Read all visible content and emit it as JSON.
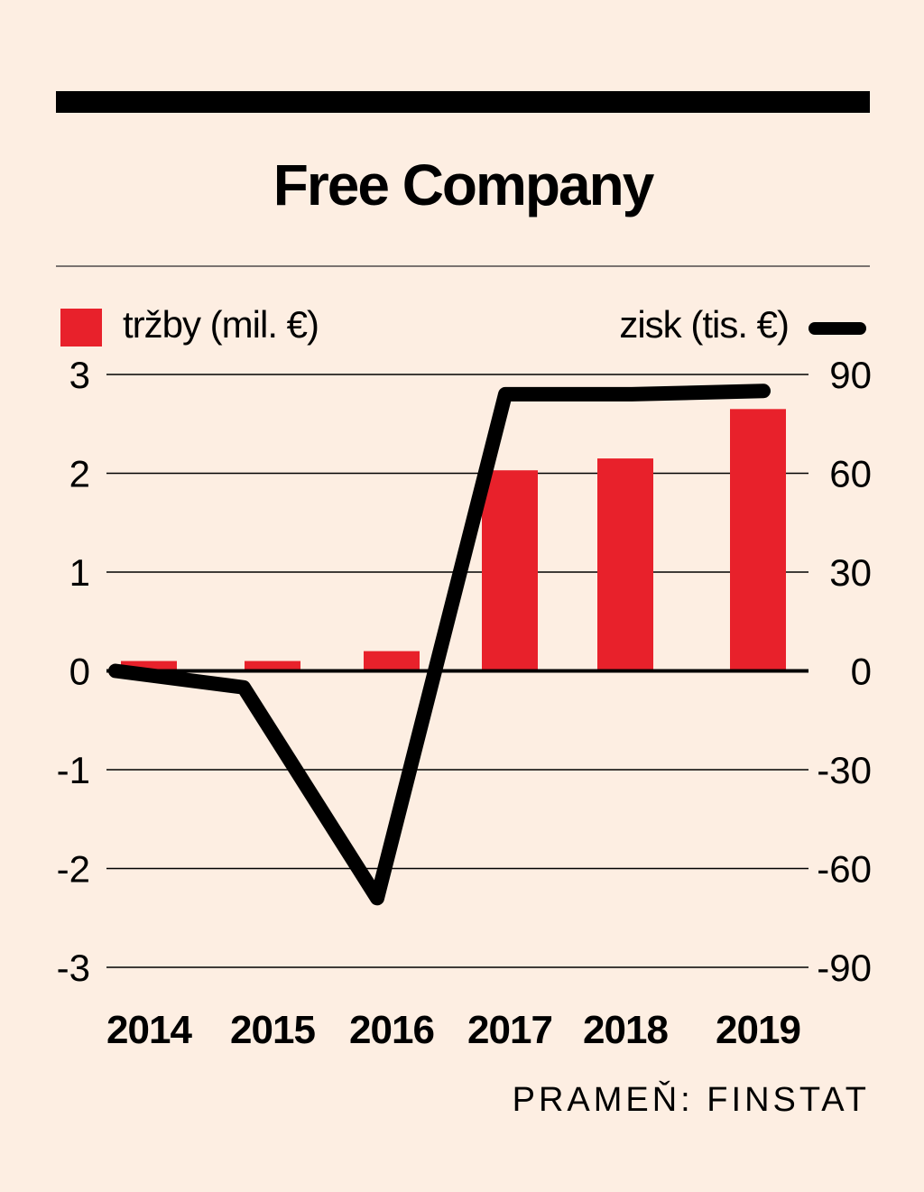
{
  "title": "Free Company",
  "legend": {
    "left_label": "tržby (mil. €)",
    "right_label": "zisk (tis. €)"
  },
  "source": "PRAMEŇ: FINSTAT",
  "colors": {
    "bar": "#e8212b",
    "line": "#000000",
    "background": "#fdeee2",
    "grid": "#000000"
  },
  "chart_data": {
    "type": "bar+line",
    "title": "Free Company",
    "categories": [
      "2014",
      "2015",
      "2016",
      "2017",
      "2018",
      "2019"
    ],
    "series": [
      {
        "name": "tržby (mil. €)",
        "type": "bar",
        "axis": "left",
        "values": [
          0.1,
          0.1,
          0.2,
          2.03,
          2.15,
          2.65
        ]
      },
      {
        "name": "zisk (tis. €)",
        "type": "line",
        "axis": "right",
        "values": [
          0,
          -5,
          -69,
          84,
          84,
          85
        ]
      }
    ],
    "left_axis": {
      "ticks": [
        "3",
        "2",
        "1",
        "0",
        "-1",
        "-2",
        "-3"
      ],
      "ylim": [
        -3,
        3
      ]
    },
    "right_axis": {
      "ticks": [
        "90",
        "60",
        "30",
        "0",
        "-30",
        "-60",
        "-90"
      ],
      "ylim": [
        -90,
        90
      ]
    },
    "grid": true,
    "legend": "top"
  }
}
